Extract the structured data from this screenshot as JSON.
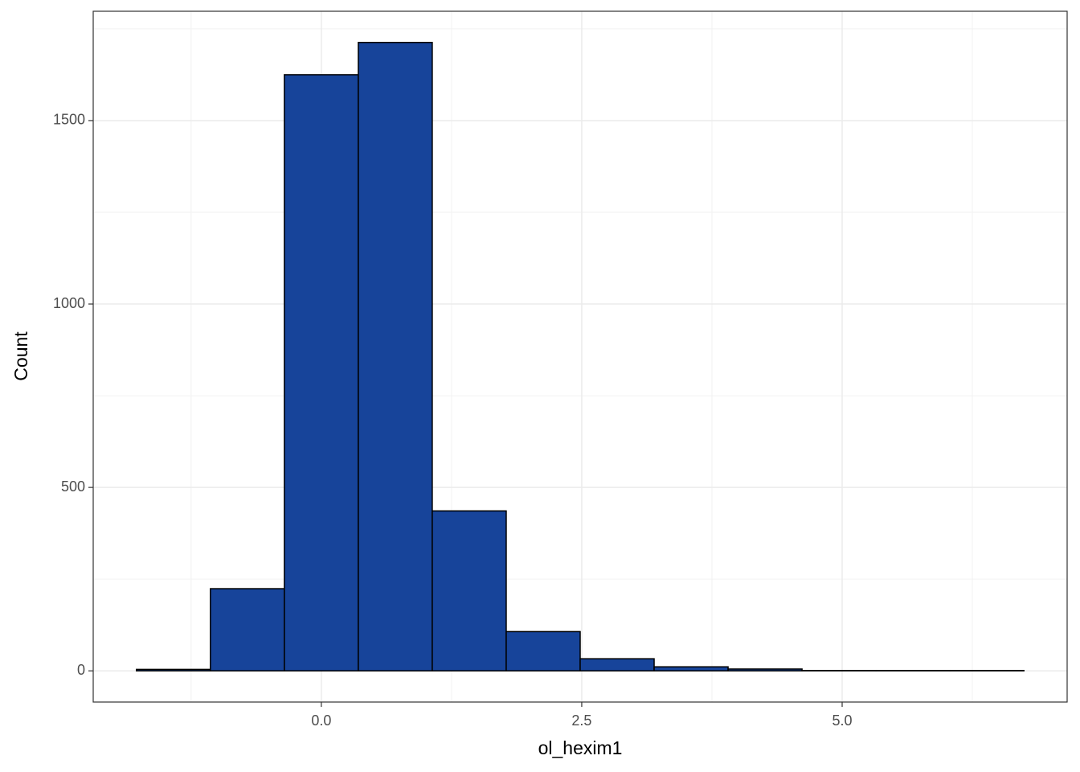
{
  "chart_data": {
    "type": "histogram",
    "x_label": "ol_hexim1",
    "y_label": "Count",
    "bins": [
      -1.775,
      -1.065,
      -0.355,
      0.355,
      1.065,
      1.775,
      2.485,
      3.195,
      3.905,
      4.615,
      5.325,
      6.035,
      6.745
    ],
    "values": [
      4,
      224,
      1625,
      1713,
      436,
      107,
      33,
      11,
      5,
      1,
      1,
      1
    ],
    "color": "#17449a",
    "edge_color": "#000000",
    "xlim": [
      -2.19,
      7.16
    ],
    "ylim": [
      -85,
      1798
    ],
    "xticks": [
      {
        "value": 0,
        "label": "0.0"
      },
      {
        "value": 2.5,
        "label": "2.5"
      },
      {
        "value": 5,
        "label": "5.0"
      }
    ],
    "yticks": [
      0,
      500,
      1000,
      1500
    ],
    "xminor": [
      -1.25,
      1.25,
      3.75,
      6.25
    ],
    "yminor": [
      250,
      750,
      1250,
      1750
    ],
    "grid": true
  }
}
